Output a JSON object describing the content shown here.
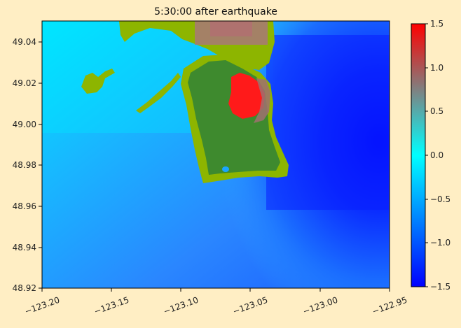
{
  "chart_data": {
    "type": "heatmap",
    "title": "5:30:00 after earthquake",
    "xlabel": "",
    "ylabel": "",
    "xlim": [
      -123.2,
      -122.95
    ],
    "ylim": [
      48.92,
      49.05
    ],
    "x_ticks": [
      -123.2,
      -123.15,
      -123.1,
      -123.05,
      -123.0,
      -122.95
    ],
    "x_tick_labels": [
      "−123.20",
      "−123.15",
      "−123.10",
      "−123.05",
      "−123.00",
      "−122.95"
    ],
    "y_ticks": [
      48.92,
      48.94,
      48.96,
      48.98,
      49.0,
      49.02,
      49.04
    ],
    "y_tick_labels": [
      "48.92",
      "48.94",
      "48.96",
      "48.98",
      "49.00",
      "49.02",
      "49.04"
    ],
    "colorbar": {
      "range": [
        -1.5,
        1.5
      ],
      "ticks": [
        -1.5,
        -1.0,
        -0.5,
        0.0,
        0.5,
        1.0,
        1.5
      ],
      "tick_labels": [
        "−1.5",
        "−1.0",
        "−0.5",
        "0.0",
        "0.5",
        "1.0",
        "1.5"
      ],
      "colors": [
        "#0000ff",
        "#00ffff",
        "#808080",
        "#ff0000"
      ]
    },
    "grid": false,
    "legend": "none",
    "colors": {
      "land": "#8db500",
      "land_dark": "#3e8a2e",
      "deep_water": "#0018ff",
      "shallow_water": "#00c8ff",
      "inundation_high": "#ff1a1a"
    }
  }
}
